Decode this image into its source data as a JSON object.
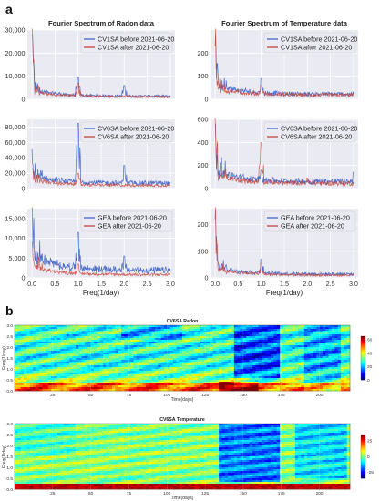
{
  "panels": {
    "a_label": "a",
    "b_label": "b"
  },
  "colors": {
    "before": "#4466c8",
    "after": "#c8453c",
    "plot_bg": "#eaeaf2"
  },
  "chart_data": [
    {
      "type": "line",
      "title": "Fourier Spectrum of Radon data",
      "xlabel": "",
      "ylim": [
        0,
        30000
      ],
      "yticks": [
        "0",
        "10,000",
        "20,000",
        "30,000"
      ],
      "xlim": [
        -0.1,
        3.1
      ],
      "x_range": [
        0,
        3
      ],
      "series": [
        {
          "name": "CV1SA before 2021-06-20",
          "peaks": [
            [
              0.0,
              28000
            ],
            [
              1.0,
              9500
            ],
            [
              2.0,
              6000
            ]
          ],
          "baseline": 3000,
          "level": 1300
        },
        {
          "name": "CV1SA after  2021-06-20",
          "peaks": [
            [
              0.0,
              30000
            ],
            [
              1.0,
              7000
            ]
          ],
          "baseline": 2500,
          "level": 1100
        }
      ]
    },
    {
      "type": "line",
      "title": "Fourier Spectrum of Temperature data",
      "xlabel": "",
      "ylim": [
        0,
        300
      ],
      "yticks": [
        "0",
        "100",
        "200"
      ],
      "xlim": [
        -0.1,
        3.1
      ],
      "x_range": [
        0,
        3
      ],
      "series": [
        {
          "name": "CV1SA before 2021-06-20",
          "peaks": [
            [
              0.0,
              280
            ],
            [
              1.0,
              90
            ]
          ],
          "baseline": 40,
          "level": 22
        },
        {
          "name": "CV1SA after  2021-06-20",
          "peaks": [
            [
              0.0,
              230
            ],
            [
              1.0,
              60
            ]
          ],
          "baseline": 30,
          "level": 18
        }
      ]
    },
    {
      "type": "line",
      "title": "",
      "xlabel": "",
      "ylim": [
        0,
        90000
      ],
      "yticks": [
        "0",
        "20,000",
        "40,000",
        "60,000",
        "80,000"
      ],
      "xlim": [
        -0.1,
        3.1
      ],
      "x_range": [
        0,
        3
      ],
      "series": [
        {
          "name": "CV6SA before 2021-06-20",
          "peaks": [
            [
              0.0,
              32000
            ],
            [
              1.0,
              85000
            ],
            [
              2.0,
              30000
            ]
          ],
          "baseline": 10000,
          "level": 7000
        },
        {
          "name": "CV6SA after  2021-06-20",
          "peaks": [
            [
              0.0,
              26000
            ],
            [
              1.0,
              20000
            ]
          ],
          "baseline": 8000,
          "level": 4000
        }
      ]
    },
    {
      "type": "line",
      "title": "",
      "xlabel": "",
      "ylim": [
        0,
        600
      ],
      "yticks": [
        "0",
        "200",
        "400",
        "600"
      ],
      "xlim": [
        -0.1,
        3.1
      ],
      "x_range": [
        0,
        3
      ],
      "series": [
        {
          "name": "CV6SA before 2021-06-20",
          "peaks": [
            [
              0.0,
              560
            ],
            [
              1.0,
              160
            ],
            [
              3.0,
              140
            ]
          ],
          "baseline": 90,
          "level": 60
        },
        {
          "name": "CV6SA after  2021-06-20",
          "peaks": [
            [
              0.0,
              450
            ],
            [
              1.0,
              400
            ],
            [
              2.0,
              90
            ]
          ],
          "baseline": 70,
          "level": 45
        }
      ]
    },
    {
      "type": "line",
      "title": "",
      "xlabel": "Freq(1/day)",
      "ylim": [
        0,
        17500
      ],
      "yticks": [
        "0",
        "5,000",
        "10,000",
        "15,000"
      ],
      "xticks": [
        "0.0",
        "0.5",
        "1.0",
        "1.5",
        "2.0",
        "2.5",
        "3.0"
      ],
      "xlim": [
        -0.1,
        3.1
      ],
      "x_range": [
        0,
        3
      ],
      "series": [
        {
          "name": "GEA before 2021-06-20",
          "peaks": [
            [
              0.0,
              17000
            ],
            [
              1.0,
              11500
            ],
            [
              2.0,
              5500
            ]
          ],
          "baseline": 4000,
          "level": 1900
        },
        {
          "name": "GEA after  2021-06-20",
          "peaks": [
            [
              0.0,
              9000
            ],
            [
              1.0,
              3500
            ]
          ],
          "baseline": 2000,
          "level": 800
        }
      ]
    },
    {
      "type": "line",
      "title": "",
      "xlabel": "Freq(1/day)",
      "ylim": [
        0,
        260
      ],
      "yticks": [
        "0",
        "100",
        "200"
      ],
      "xticks": [
        "0.0",
        "0.5",
        "1.0",
        "1.5",
        "2.0",
        "2.5",
        "3.0"
      ],
      "xlim": [
        -0.1,
        3.1
      ],
      "x_range": [
        0,
        3
      ],
      "series": [
        {
          "name": "GEA before 2021-06-20",
          "peaks": [
            [
              0.0,
              250
            ],
            [
              1.0,
              70
            ]
          ],
          "baseline": 30,
          "level": 14
        },
        {
          "name": "GEA after  2021-06-20",
          "peaks": [
            [
              0.0,
              220
            ],
            [
              1.0,
              55
            ]
          ],
          "baseline": 25,
          "level": 10
        }
      ]
    },
    {
      "type": "heatmap",
      "title": "CV6SA Radon",
      "xlabel": "Time(days)",
      "ylabel": "Freq(1/day)",
      "xticks": [
        "25",
        "50",
        "75",
        "100",
        "125",
        "150",
        "175",
        "200"
      ],
      "yticks": [
        "0.0",
        "0.5",
        "1.0",
        "1.5",
        "2.0",
        "2.5",
        "3.0"
      ],
      "xlim": [
        0,
        220
      ],
      "ylim": [
        0,
        3
      ],
      "colorbar": {
        "ticks": [
          "0",
          "20",
          "40",
          "60"
        ],
        "range": [
          0,
          65
        ]
      }
    },
    {
      "type": "heatmap",
      "title": "CV6SA Temperature",
      "xlabel": "Time(days)",
      "ylabel": "Freq(1/day)",
      "xticks": [
        "25",
        "50",
        "75",
        "100",
        "125",
        "150",
        "175",
        "200"
      ],
      "yticks": [
        "0.0",
        "0.5",
        "1.0",
        "1.5",
        "2.0",
        "2.5",
        "3.0"
      ],
      "xlim": [
        0,
        220
      ],
      "ylim": [
        0,
        3
      ],
      "colorbar": {
        "ticks": [
          "-25",
          "0",
          "25"
        ],
        "range": [
          -35,
          35
        ]
      }
    }
  ]
}
